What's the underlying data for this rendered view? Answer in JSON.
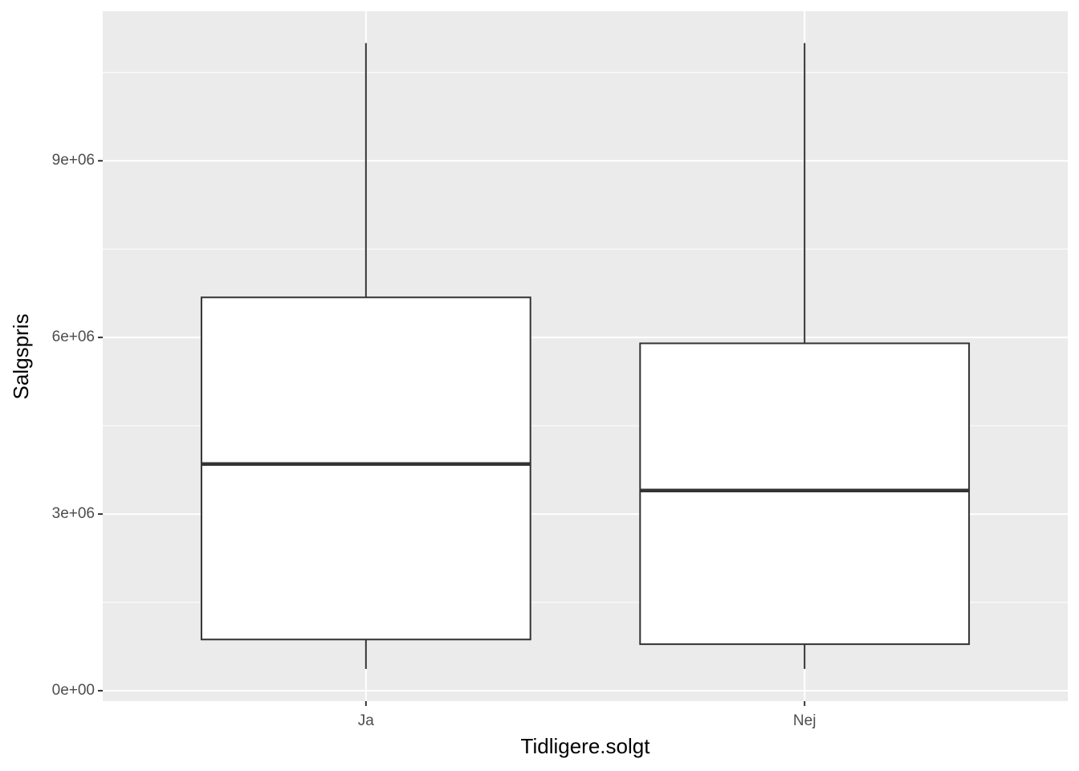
{
  "chart_data": {
    "type": "boxplot",
    "x_label": "Tidligere.solgt",
    "y_label": "Salgspris",
    "categories": [
      "Ja",
      "Nej"
    ],
    "boxes": [
      {
        "min": 370000,
        "q1": 870000,
        "median": 3850000,
        "q3": 6680000,
        "max": 11000000
      },
      {
        "min": 370000,
        "q1": 790000,
        "median": 3400000,
        "q3": 5900000,
        "max": 11000000
      }
    ],
    "box_fill": "#ffffff",
    "box_stroke": "#333333",
    "ylim": [
      -177000,
      11540000
    ],
    "yticks": [
      {
        "value": 0,
        "label": "0e+00"
      },
      {
        "value": 3000000,
        "label": "3e+06"
      },
      {
        "value": 6000000,
        "label": "6e+06"
      },
      {
        "value": 9000000,
        "label": "9e+06"
      }
    ],
    "y_minor_ticks": [
      1500000,
      4500000,
      7500000,
      10500000
    ],
    "grid": true
  }
}
